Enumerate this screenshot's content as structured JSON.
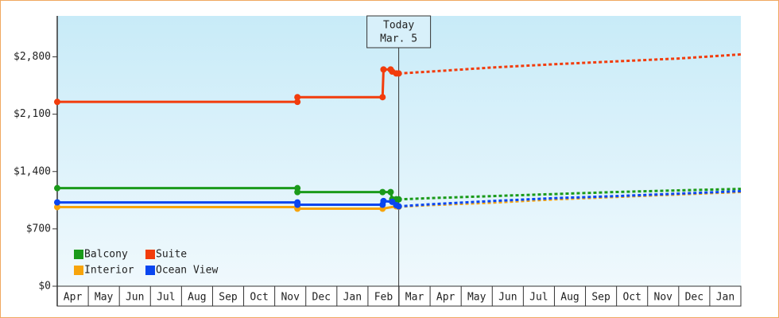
{
  "chart_data": {
    "type": "line",
    "categories": [
      "Apr",
      "May",
      "Jun",
      "Jul",
      "Aug",
      "Sep",
      "Oct",
      "Nov",
      "Dec",
      "Jan",
      "Feb",
      "Mar",
      "Apr",
      "May",
      "Jun",
      "Jul",
      "Aug",
      "Sep",
      "Oct",
      "Nov",
      "Dec",
      "Jan"
    ],
    "xlim": [
      0,
      22
    ],
    "ylim": [
      0,
      3300
    ],
    "yticks": [
      {
        "value": 0,
        "label": "$0"
      },
      {
        "value": 700,
        "label": "$700"
      },
      {
        "value": 1400,
        "label": "$1,400"
      },
      {
        "value": 2100,
        "label": "$2,100"
      },
      {
        "value": 2800,
        "label": "$2,800"
      }
    ],
    "today": {
      "x": 10.99,
      "label": "Today",
      "date": "Mar. 5"
    },
    "series": [
      {
        "name": "Balcony",
        "color": "#1a9a1a",
        "x": [
          0,
          7.73,
          7.73,
          10.47,
          10.73,
          10.78,
          10.91,
          10.99,
          12,
          14,
          16,
          18,
          20,
          22
        ],
        "values": [
          1197,
          1197,
          1149,
          1149,
          1149,
          1062,
          1062,
          1060,
          1075,
          1100,
          1125,
          1150,
          1170,
          1188
        ]
      },
      {
        "name": "Suite",
        "color": "#f23c0c",
        "x": [
          0,
          7.73,
          7.73,
          10.47,
          10.5,
          10.73,
          10.78,
          10.91,
          10.99,
          12,
          14,
          16,
          18,
          20,
          22
        ],
        "values": [
          2250,
          2250,
          2308,
          2308,
          2646,
          2646,
          2620,
          2597,
          2597,
          2620,
          2670,
          2710,
          2745,
          2780,
          2830
        ]
      },
      {
        "name": "Interior",
        "color": "#f7a40c",
        "x": [
          0,
          7.73,
          7.73,
          10.47,
          10.91,
          10.99,
          12,
          14,
          16,
          18,
          20,
          22
        ],
        "values": [
          966,
          966,
          946,
          946,
          975,
          970,
          990,
          1020,
          1060,
          1090,
          1120,
          1150
        ]
      },
      {
        "name": "Ocean View",
        "color": "#0a46f0",
        "x": [
          0,
          7.73,
          7.73,
          10.47,
          10.5,
          10.78,
          10.91,
          10.99,
          12,
          14,
          16,
          18,
          20,
          22
        ],
        "values": [
          1023,
          1023,
          995,
          995,
          1040,
          1030,
          990,
          975,
          1000,
          1040,
          1075,
          1100,
          1130,
          1160
        ]
      }
    ]
  }
}
